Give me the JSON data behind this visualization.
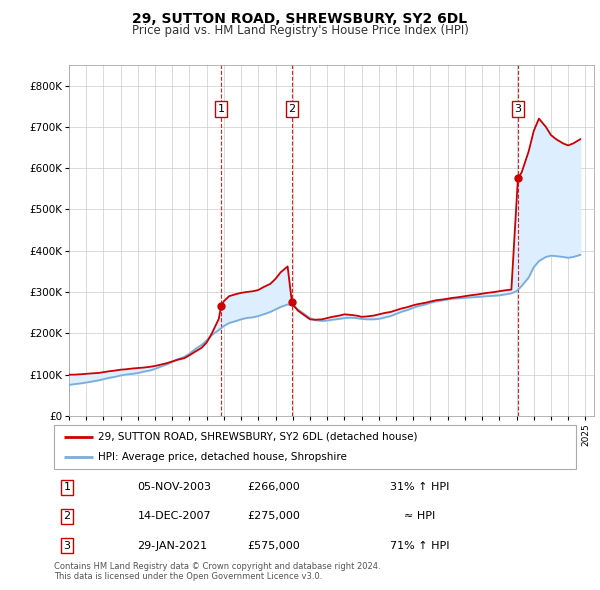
{
  "title": "29, SUTTON ROAD, SHREWSBURY, SY2 6DL",
  "subtitle": "Price paid vs. HM Land Registry's House Price Index (HPI)",
  "legend_property": "29, SUTTON ROAD, SHREWSBURY, SY2 6DL (detached house)",
  "legend_hpi": "HPI: Average price, detached house, Shropshire",
  "footer1": "Contains HM Land Registry data © Crown copyright and database right 2024.",
  "footer2": "This data is licensed under the Open Government Licence v3.0.",
  "transactions": [
    {
      "num": 1,
      "date": "05-NOV-2003",
      "price": 266000,
      "note": "31% ↑ HPI",
      "year": 2003.84
    },
    {
      "num": 2,
      "date": "14-DEC-2007",
      "price": 275000,
      "note": "≈ HPI",
      "year": 2007.95
    },
    {
      "num": 3,
      "date": "29-JAN-2021",
      "price": 575000,
      "note": "71% ↑ HPI",
      "year": 2021.08
    }
  ],
  "property_color": "#cc0000",
  "hpi_color": "#7aaddb",
  "shade_color": "#ddeeff",
  "vline_color": "#cc0000",
  "box_color": "#cc0000",
  "ylim": [
    0,
    850000
  ],
  "xlim_start": 1995,
  "xlim_end": 2025.5,
  "property_line": {
    "years": [
      1995.0,
      1995.3,
      1995.7,
      1996.0,
      1996.3,
      1996.7,
      1997.0,
      1997.3,
      1997.7,
      1998.0,
      1998.3,
      1998.7,
      1999.0,
      1999.3,
      1999.7,
      2000.0,
      2000.3,
      2000.7,
      2001.0,
      2001.3,
      2001.7,
      2002.0,
      2002.3,
      2002.7,
      2003.0,
      2003.3,
      2003.7,
      2003.84,
      2004.0,
      2004.3,
      2004.7,
      2005.0,
      2005.3,
      2005.7,
      2006.0,
      2006.3,
      2006.7,
      2007.0,
      2007.3,
      2007.7,
      2007.95,
      2008.0,
      2008.3,
      2008.7,
      2009.0,
      2009.3,
      2009.7,
      2010.0,
      2010.3,
      2010.7,
      2011.0,
      2011.3,
      2011.7,
      2012.0,
      2012.3,
      2012.7,
      2013.0,
      2013.3,
      2013.7,
      2014.0,
      2014.3,
      2014.7,
      2015.0,
      2015.3,
      2015.7,
      2016.0,
      2016.3,
      2016.7,
      2017.0,
      2017.3,
      2017.7,
      2018.0,
      2018.3,
      2018.7,
      2019.0,
      2019.3,
      2019.7,
      2020.0,
      2020.3,
      2020.7,
      2021.08,
      2021.3,
      2021.7,
      2022.0,
      2022.3,
      2022.7,
      2023.0,
      2023.3,
      2023.7,
      2024.0,
      2024.3,
      2024.7
    ],
    "values": [
      100000,
      100000,
      101000,
      102000,
      103000,
      104000,
      106000,
      108000,
      110000,
      112000,
      113000,
      115000,
      116000,
      117000,
      119000,
      121000,
      124000,
      128000,
      132000,
      136000,
      140000,
      147000,
      155000,
      165000,
      178000,
      200000,
      235000,
      266000,
      278000,
      290000,
      295000,
      298000,
      300000,
      302000,
      305000,
      312000,
      320000,
      332000,
      348000,
      362000,
      275000,
      270000,
      255000,
      243000,
      234000,
      233000,
      234000,
      237000,
      240000,
      243000,
      246000,
      245000,
      243000,
      240000,
      241000,
      243000,
      246000,
      249000,
      252000,
      256000,
      260000,
      264000,
      268000,
      271000,
      274000,
      277000,
      280000,
      282000,
      284000,
      286000,
      288000,
      290000,
      292000,
      294000,
      296000,
      298000,
      300000,
      302000,
      304000,
      306000,
      575000,
      590000,
      640000,
      690000,
      720000,
      700000,
      680000,
      670000,
      660000,
      655000,
      660000,
      670000
    ]
  },
  "hpi_line": {
    "years": [
      1995.0,
      1995.3,
      1995.7,
      1996.0,
      1996.3,
      1996.7,
      1997.0,
      1997.3,
      1997.7,
      1998.0,
      1998.3,
      1998.7,
      1999.0,
      1999.3,
      1999.7,
      2000.0,
      2000.3,
      2000.7,
      2001.0,
      2001.3,
      2001.7,
      2002.0,
      2002.3,
      2002.7,
      2003.0,
      2003.3,
      2003.7,
      2004.0,
      2004.3,
      2004.7,
      2005.0,
      2005.3,
      2005.7,
      2006.0,
      2006.3,
      2006.7,
      2007.0,
      2007.3,
      2007.7,
      2008.0,
      2008.3,
      2008.7,
      2009.0,
      2009.3,
      2009.7,
      2010.0,
      2010.3,
      2010.7,
      2011.0,
      2011.3,
      2011.7,
      2012.0,
      2012.3,
      2012.7,
      2013.0,
      2013.3,
      2013.7,
      2014.0,
      2014.3,
      2014.7,
      2015.0,
      2015.3,
      2015.7,
      2016.0,
      2016.3,
      2016.7,
      2017.0,
      2017.3,
      2017.7,
      2018.0,
      2018.3,
      2018.7,
      2019.0,
      2019.3,
      2019.7,
      2020.0,
      2020.3,
      2020.7,
      2021.0,
      2021.3,
      2021.7,
      2022.0,
      2022.3,
      2022.7,
      2023.0,
      2023.3,
      2023.7,
      2024.0,
      2024.3,
      2024.7
    ],
    "values": [
      75000,
      77000,
      79000,
      81000,
      83000,
      86000,
      89000,
      92000,
      95000,
      98000,
      100000,
      102000,
      104000,
      107000,
      110000,
      114000,
      119000,
      125000,
      131000,
      137000,
      143000,
      151000,
      161000,
      172000,
      183000,
      196000,
      208000,
      218000,
      225000,
      230000,
      234000,
      237000,
      239000,
      242000,
      246000,
      252000,
      258000,
      264000,
      270000,
      268000,
      258000,
      246000,
      237000,
      232000,
      230000,
      231000,
      233000,
      235000,
      237000,
      238000,
      237000,
      235000,
      234000,
      234000,
      235000,
      238000,
      242000,
      247000,
      252000,
      257000,
      262000,
      266000,
      270000,
      274000,
      277000,
      280000,
      282000,
      284000,
      285000,
      286000,
      287000,
      288000,
      289000,
      290000,
      291000,
      292000,
      294000,
      297000,
      302000,
      315000,
      335000,
      360000,
      375000,
      385000,
      388000,
      387000,
      385000,
      383000,
      385000,
      390000
    ]
  }
}
